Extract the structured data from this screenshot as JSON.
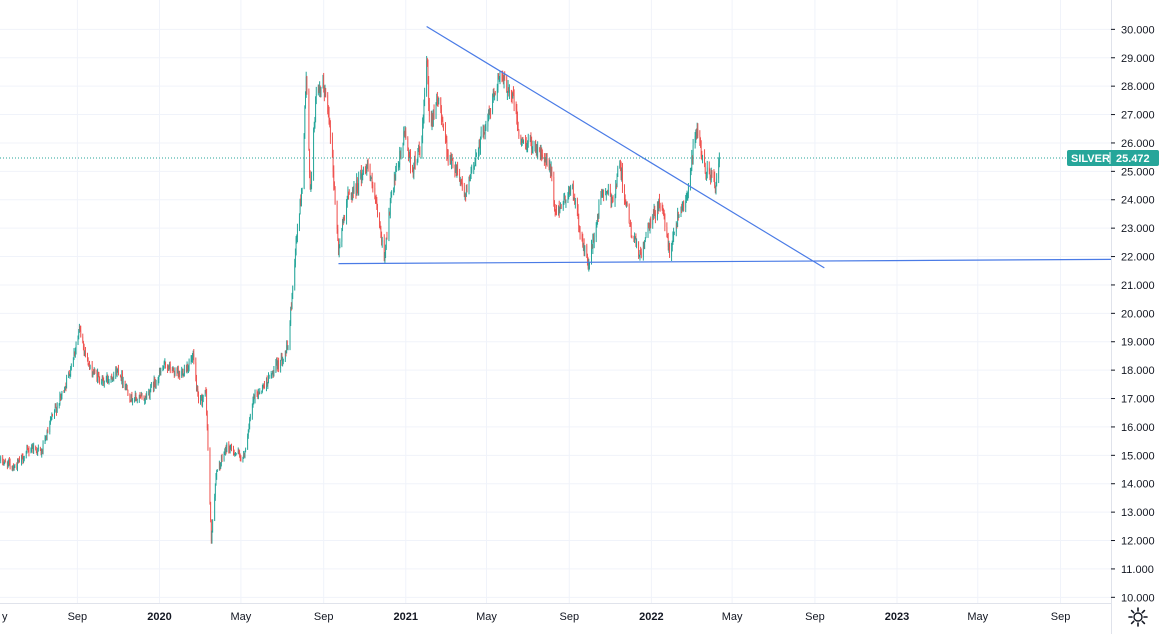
{
  "colors": {
    "up": "#26a69a",
    "down": "#ef5350",
    "trendline": "#4a7be6",
    "badge": "#26a69a",
    "grid": "#f0f3fa",
    "axis_line": "#e0e3eb",
    "text": "#131722"
  },
  "settings_icon": "gear-icon",
  "chart_data": {
    "type": "candlestick",
    "symbol": "SILVER",
    "last_price": "25.472",
    "last_value": 25.472,
    "y_axis": {
      "range": [
        9.8,
        30.4
      ],
      "ticks": [
        30,
        29,
        28,
        27,
        26,
        25,
        24,
        23,
        22,
        21,
        20,
        19,
        18,
        17,
        16,
        15,
        14,
        13,
        12,
        11,
        10
      ],
      "tick_labels": [
        "30.000",
        "29.000",
        "28.000",
        "27.000",
        "26.000",
        "25.000",
        "24.000",
        "23.000",
        "22.000",
        "21.000",
        "20.000",
        "19.000",
        "18.000",
        "17.000",
        "16.000",
        "15.000",
        "14.000",
        "13.000",
        "12.000",
        "11.000",
        "10.000"
      ]
    },
    "x_axis": {
      "range": [
        "2019-05-09",
        "2023-11-15"
      ],
      "ticks": [
        {
          "date": "2019-05-01",
          "label": "y",
          "bold": false
        },
        {
          "date": "2019-09-01",
          "label": "Sep",
          "bold": false
        },
        {
          "date": "2020-01-01",
          "label": "2020",
          "bold": true
        },
        {
          "date": "2020-05-01",
          "label": "May",
          "bold": false
        },
        {
          "date": "2020-09-01",
          "label": "Sep",
          "bold": false
        },
        {
          "date": "2021-01-01",
          "label": "2021",
          "bold": true
        },
        {
          "date": "2021-05-01",
          "label": "May",
          "bold": false
        },
        {
          "date": "2021-09-01",
          "label": "Sep",
          "bold": false
        },
        {
          "date": "2022-01-01",
          "label": "2022",
          "bold": true
        },
        {
          "date": "2022-05-01",
          "label": "May",
          "bold": false
        },
        {
          "date": "2022-09-01",
          "label": "Sep",
          "bold": false
        },
        {
          "date": "2023-01-01",
          "label": "2023",
          "bold": true
        },
        {
          "date": "2023-05-01",
          "label": "May",
          "bold": false
        },
        {
          "date": "2023-09-01",
          "label": "Sep",
          "bold": false
        }
      ]
    },
    "price_path": [
      [
        "2019-05-10",
        14.8
      ],
      [
        "2019-06-01",
        14.6
      ],
      [
        "2019-06-25",
        15.3
      ],
      [
        "2019-07-10",
        15.1
      ],
      [
        "2019-07-25",
        16.3
      ],
      [
        "2019-08-10",
        17.2
      ],
      [
        "2019-08-20",
        17.9
      ],
      [
        "2019-09-04",
        19.4
      ],
      [
        "2019-09-20",
        18.0
      ],
      [
        "2019-10-10",
        17.6
      ],
      [
        "2019-11-01",
        18.0
      ],
      [
        "2019-11-20",
        17.0
      ],
      [
        "2019-12-10",
        17.0
      ],
      [
        "2019-12-31",
        17.8
      ],
      [
        "2020-01-10",
        18.2
      ],
      [
        "2020-01-30",
        17.8
      ],
      [
        "2020-02-20",
        18.4
      ],
      [
        "2020-02-28",
        16.8
      ],
      [
        "2020-03-10",
        17.2
      ],
      [
        "2020-03-18",
        12.0
      ],
      [
        "2020-03-25",
        14.3
      ],
      [
        "2020-04-10",
        15.3
      ],
      [
        "2020-05-05",
        14.9
      ],
      [
        "2020-05-20",
        17.0
      ],
      [
        "2020-06-15",
        17.8
      ],
      [
        "2020-07-10",
        18.8
      ],
      [
        "2020-07-22",
        22.5
      ],
      [
        "2020-07-31",
        24.5
      ],
      [
        "2020-08-06",
        28.4
      ],
      [
        "2020-08-12",
        24.2
      ],
      [
        "2020-08-20",
        27.5
      ],
      [
        "2020-09-01",
        28.0
      ],
      [
        "2020-09-10",
        26.8
      ],
      [
        "2020-09-23",
        22.2
      ],
      [
        "2020-10-05",
        24.0
      ],
      [
        "2020-10-20",
        24.5
      ],
      [
        "2020-11-05",
        25.3
      ],
      [
        "2020-11-20",
        23.5
      ],
      [
        "2020-11-30",
        22.0
      ],
      [
        "2020-12-10",
        24.0
      ],
      [
        "2020-12-31",
        26.4
      ],
      [
        "2021-01-10",
        25.0
      ],
      [
        "2021-01-25",
        26.0
      ],
      [
        "2021-02-01",
        29.0
      ],
      [
        "2021-02-05",
        26.8
      ],
      [
        "2021-02-20",
        27.5
      ],
      [
        "2021-03-05",
        25.5
      ],
      [
        "2021-03-20",
        25.0
      ],
      [
        "2021-03-31",
        24.1
      ],
      [
        "2021-04-20",
        26.0
      ],
      [
        "2021-05-05",
        27.0
      ],
      [
        "2021-05-18",
        28.3
      ],
      [
        "2021-06-01",
        28.0
      ],
      [
        "2021-06-10",
        27.6
      ],
      [
        "2021-06-20",
        26.0
      ],
      [
        "2021-07-10",
        26.0
      ],
      [
        "2021-08-05",
        25.0
      ],
      [
        "2021-08-10",
        23.5
      ],
      [
        "2021-08-25",
        24.0
      ],
      [
        "2021-09-05",
        24.5
      ],
      [
        "2021-09-20",
        22.5
      ],
      [
        "2021-09-30",
        21.7
      ],
      [
        "2021-10-20",
        24.3
      ],
      [
        "2021-11-05",
        24.0
      ],
      [
        "2021-11-15",
        25.3
      ],
      [
        "2021-11-30",
        23.0
      ],
      [
        "2021-12-15",
        22.0
      ],
      [
        "2021-12-31",
        23.2
      ],
      [
        "2022-01-15",
        24.0
      ],
      [
        "2022-01-28",
        22.2
      ],
      [
        "2022-02-10",
        23.5
      ],
      [
        "2022-02-25",
        24.3
      ],
      [
        "2022-03-08",
        26.5
      ],
      [
        "2022-03-20",
        25.1
      ],
      [
        "2022-03-31",
        24.9
      ],
      [
        "2022-04-07",
        24.4
      ],
      [
        "2022-04-12",
        25.472
      ]
    ],
    "trendlines": [
      {
        "name": "descending-resistance",
        "p1": [
          "2021-02-01",
          30.1
        ],
        "p2": [
          "2022-09-15",
          21.6
        ]
      },
      {
        "name": "horizontal-support",
        "p1": [
          "2020-09-23",
          21.75
        ],
        "p2": [
          "2023-11-15",
          21.9
        ]
      }
    ],
    "last_price_line": true,
    "grid": true,
    "legend": "none"
  }
}
